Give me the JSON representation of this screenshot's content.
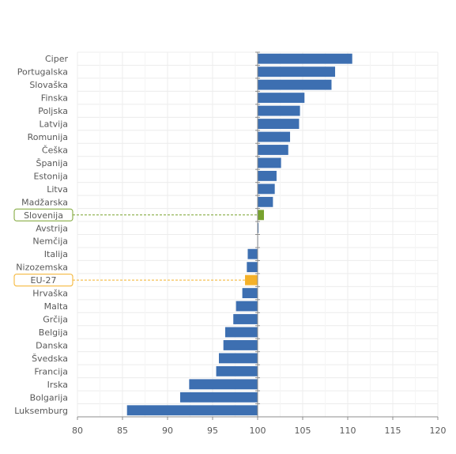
{
  "chart_data": {
    "type": "bar",
    "orientation": "horizontal",
    "categories": [
      "Ciper",
      "Portugalska",
      "Slovaška",
      "Finska",
      "Poljska",
      "Latvija",
      "Romunija",
      "Češka",
      "Španija",
      "Estonija",
      "Litva",
      "Madžarska",
      "Slovenija",
      "Avstrija",
      "Nemčija",
      "Italija",
      "Nizozemska",
      "EU-27",
      "Hrvaška",
      "Malta",
      "Grčija",
      "Belgija",
      "Danska",
      "Švedska",
      "Francija",
      "Irska",
      "Bolgarija",
      "Luksemburg"
    ],
    "values": [
      110.5,
      108.6,
      108.2,
      105.2,
      104.7,
      104.6,
      103.6,
      103.4,
      102.6,
      102.1,
      101.9,
      101.7,
      100.7,
      100.1,
      100.0,
      98.9,
      98.8,
      98.6,
      98.3,
      97.6,
      97.3,
      96.4,
      96.2,
      95.7,
      95.4,
      92.4,
      91.4,
      85.5
    ],
    "baseline": 100,
    "xlim": [
      80,
      120
    ],
    "xticks": [
      "80",
      "85",
      "90",
      "95",
      "100",
      "105",
      "110",
      "115",
      "120"
    ],
    "grid": true,
    "highlighted": [
      "Slovenija",
      "EU-27"
    ],
    "colors": {
      "default": "#3d6fb1",
      "Slovenija": "#78a22f",
      "EU-27": "#f4b12a"
    },
    "title": "",
    "xlabel": "",
    "ylabel": ""
  }
}
